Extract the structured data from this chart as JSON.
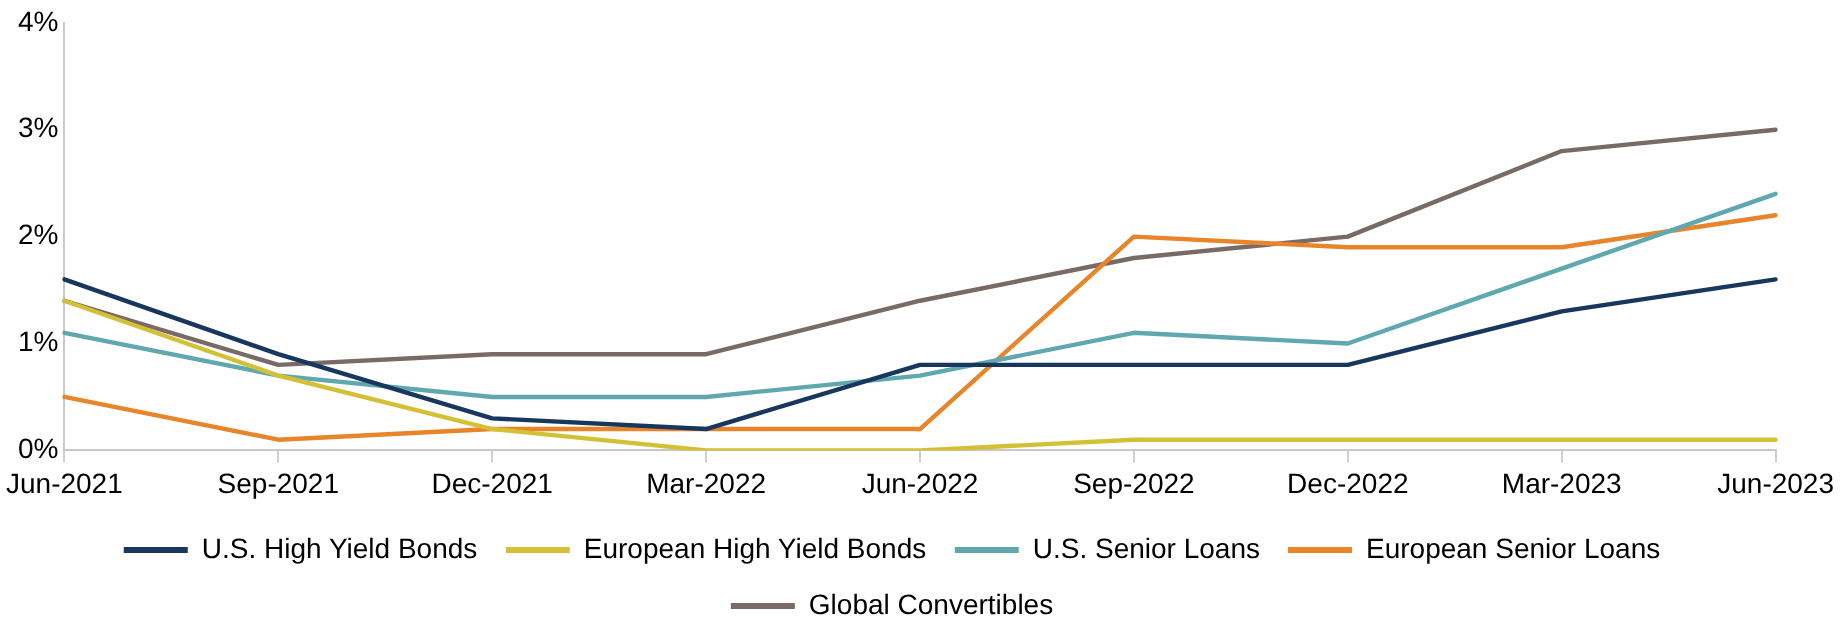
{
  "chart_data": {
    "type": "line",
    "categories": [
      "Jun-2021",
      "Sep-2021",
      "Dec-2021",
      "Mar-2022",
      "Jun-2022",
      "Sep-2022",
      "Dec-2022",
      "Mar-2023",
      "Jun-2023"
    ],
    "ylim": [
      0,
      4
    ],
    "yticks": [
      {
        "value": 0,
        "label": "0%"
      },
      {
        "value": 1,
        "label": "1%"
      },
      {
        "value": 2,
        "label": "2%"
      },
      {
        "value": 3,
        "label": "3%"
      },
      {
        "value": 4,
        "label": "4%"
      }
    ],
    "grid": false,
    "legend": "bottom",
    "marker": "none",
    "line_style": "solid",
    "series": [
      {
        "name": "U.S. High Yield Bonds",
        "color": "#17375e",
        "values": [
          1.6,
          0.9,
          0.3,
          0.2,
          0.8,
          0.8,
          0.8,
          1.3,
          1.6
        ]
      },
      {
        "name": "European High Yield Bonds",
        "color": "#d4c035",
        "values": [
          1.4,
          0.7,
          0.2,
          0.0,
          0.0,
          0.1,
          0.1,
          0.1,
          0.1
        ]
      },
      {
        "name": "U.S. Senior Loans",
        "color": "#5fa8b0",
        "values": [
          1.1,
          0.7,
          0.5,
          0.5,
          0.7,
          1.1,
          1.0,
          1.7,
          2.4
        ]
      },
      {
        "name": "European Senior Loans",
        "color": "#e8852a",
        "values": [
          0.5,
          0.1,
          0.2,
          0.2,
          0.2,
          2.0,
          1.9,
          1.9,
          2.2
        ]
      },
      {
        "name": "Global Convertibles",
        "color": "#7a6a66",
        "values": [
          1.4,
          0.8,
          0.9,
          0.9,
          1.4,
          1.8,
          2.0,
          2.8,
          3.0
        ]
      }
    ]
  }
}
